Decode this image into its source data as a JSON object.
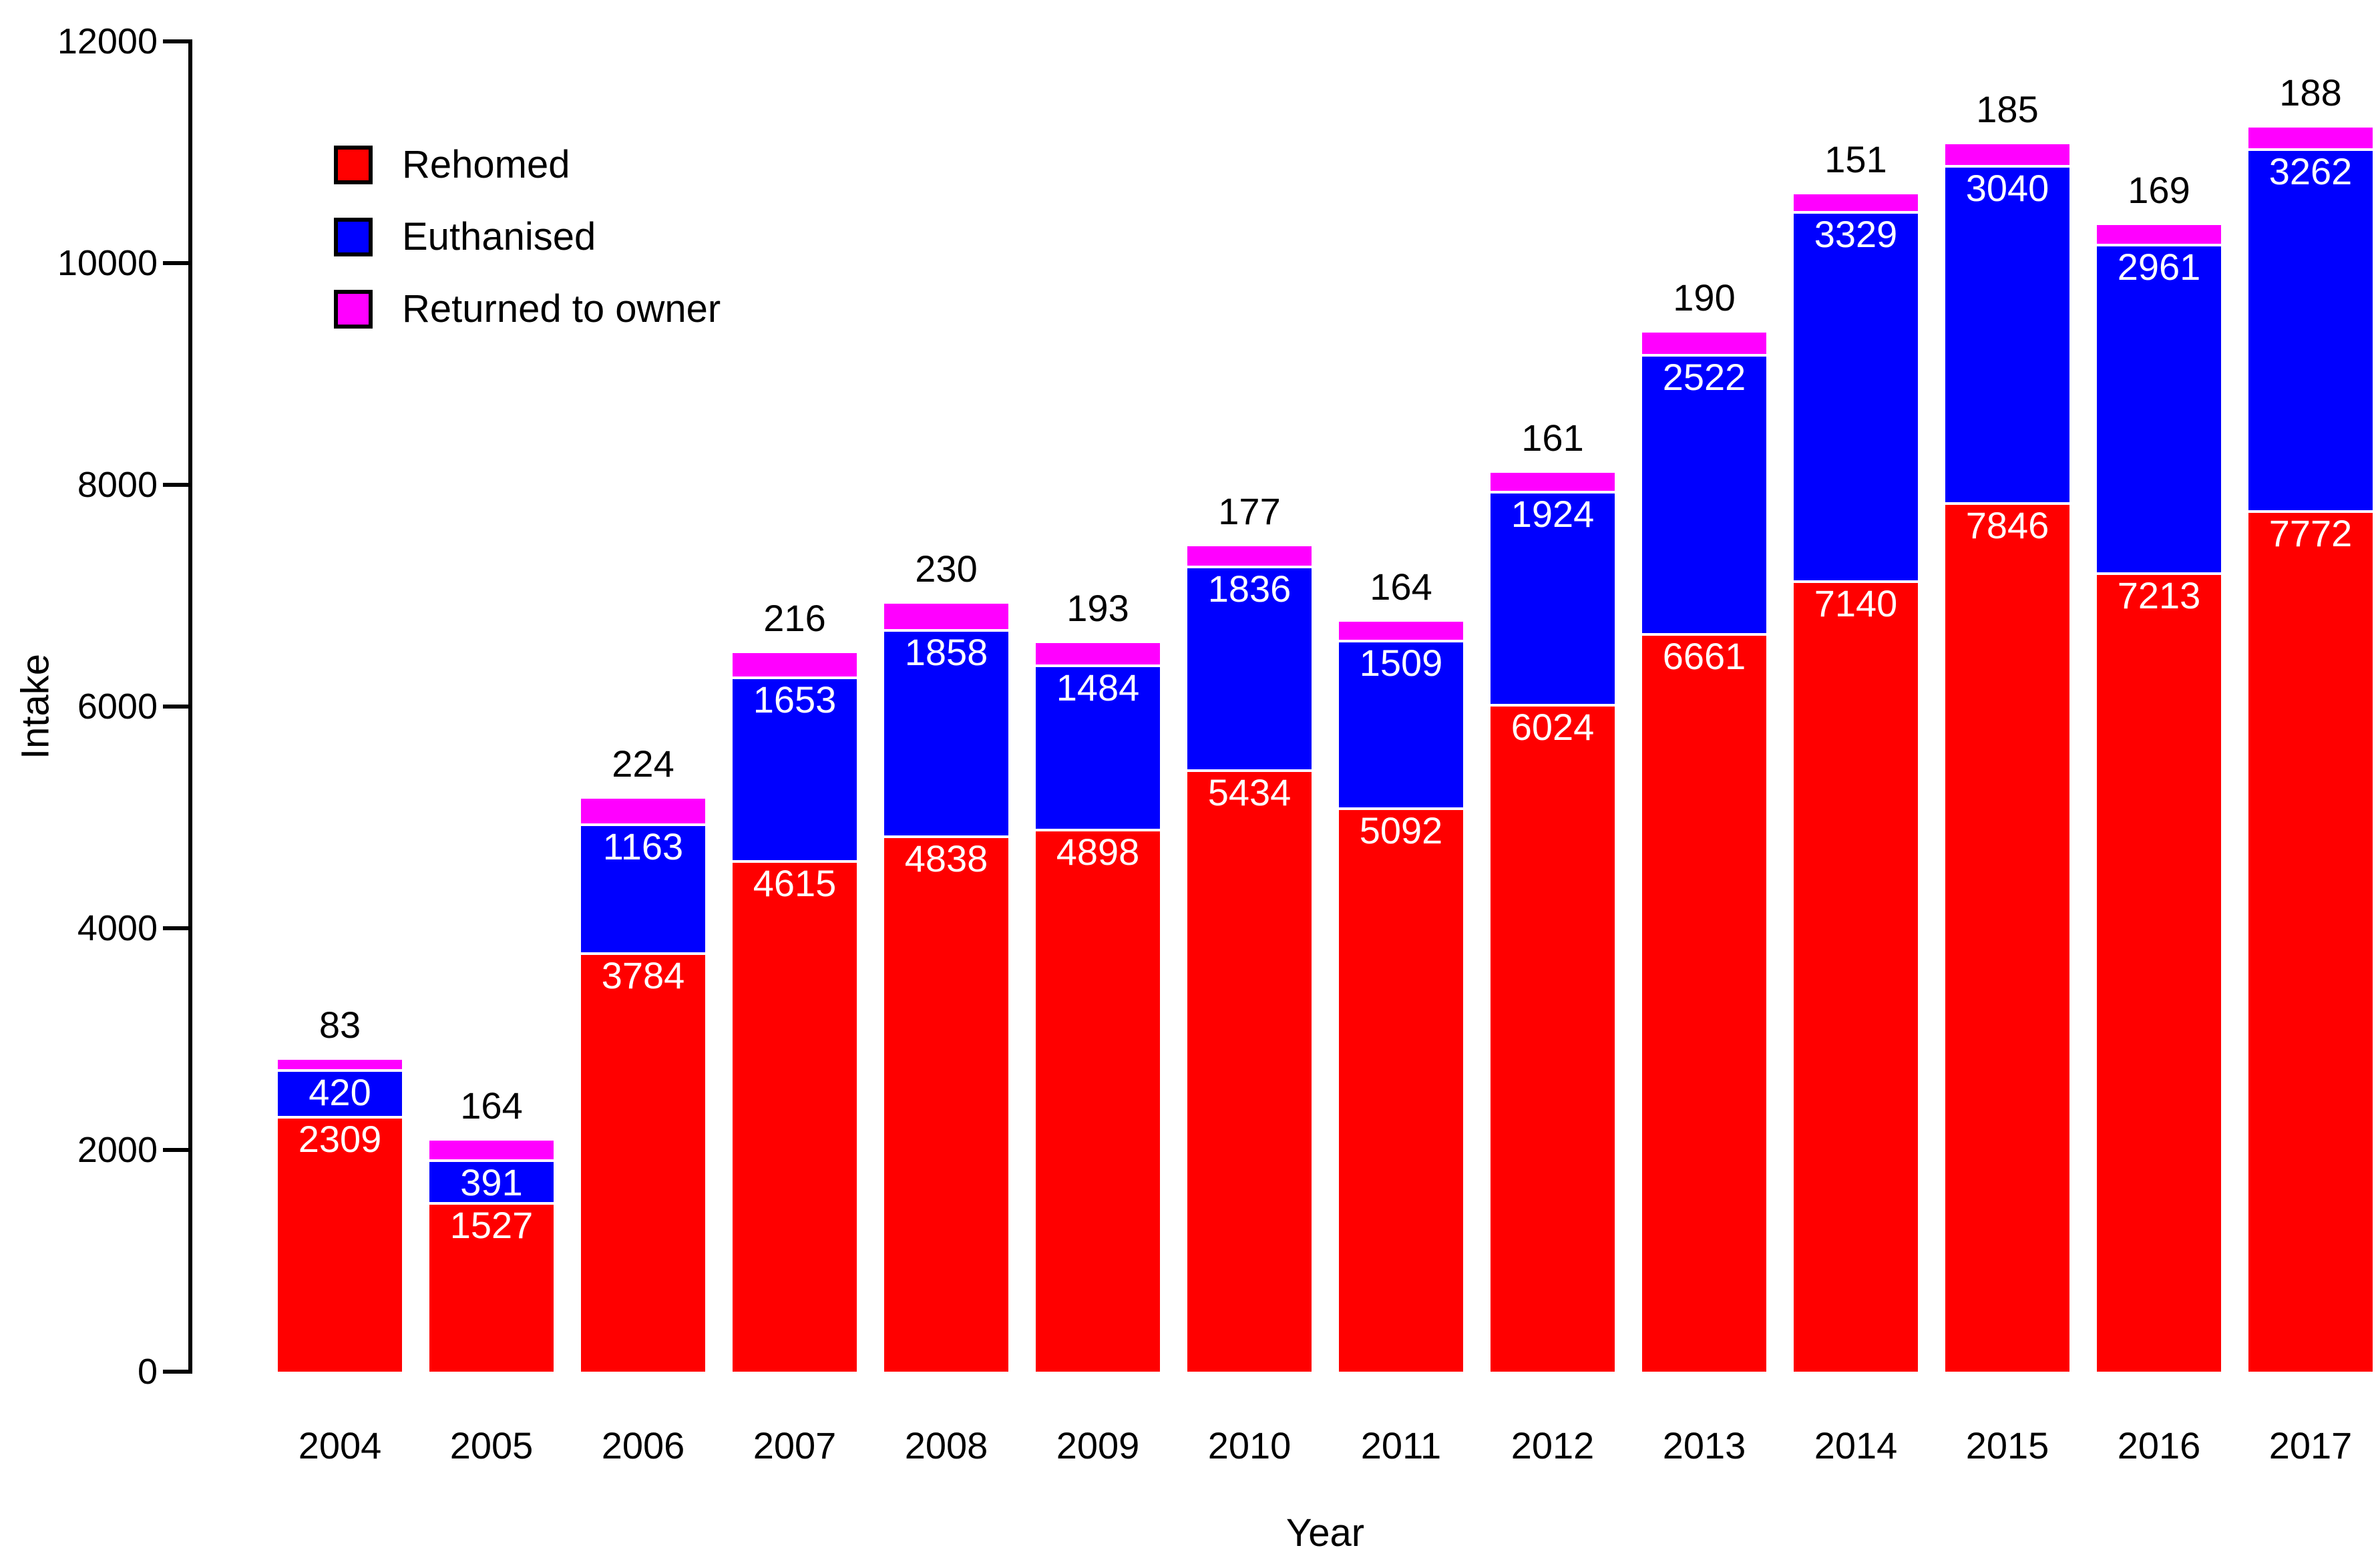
{
  "chart_data": {
    "type": "bar",
    "stacked": true,
    "title": "",
    "xlabel": "Year",
    "ylabel": "Intake",
    "categories": [
      "2004",
      "2005",
      "2006",
      "2007",
      "2008",
      "2009",
      "2010",
      "2011",
      "2012",
      "2013",
      "2014",
      "2015",
      "2016",
      "2017"
    ],
    "series": [
      {
        "name": "Rehomed",
        "color": "#ff0000",
        "label_color": "#ffffff",
        "values": [
          2309,
          1527,
          3784,
          4615,
          4838,
          4898,
          5434,
          5092,
          6024,
          6661,
          7140,
          7846,
          7213,
          7772
        ]
      },
      {
        "name": "Euthanised",
        "color": "#0000ff",
        "label_color": "#ffffff",
        "values": [
          420,
          391,
          1163,
          1653,
          1858,
          1484,
          1836,
          1509,
          1924,
          2522,
          3329,
          3040,
          2961,
          3262
        ]
      },
      {
        "name": "Returned to owner",
        "color": "#ff00ff",
        "label_color": "#000000",
        "values": [
          83,
          164,
          224,
          216,
          230,
          193,
          177,
          164,
          161,
          190,
          151,
          185,
          169,
          188
        ]
      }
    ],
    "top_labels": [
      83,
      164,
      224,
      216,
      230,
      193,
      177,
      164,
      161,
      190,
      151,
      185,
      169,
      188
    ],
    "top_label_note": "black number above each bar is the Returned to owner value",
    "yticks": [
      0,
      2000,
      4000,
      6000,
      8000,
      10000,
      12000
    ],
    "ylim": [
      0,
      12000
    ],
    "grid": false,
    "legend_position": "top-left",
    "axis_color": "#000000",
    "text_color": "#000000"
  }
}
